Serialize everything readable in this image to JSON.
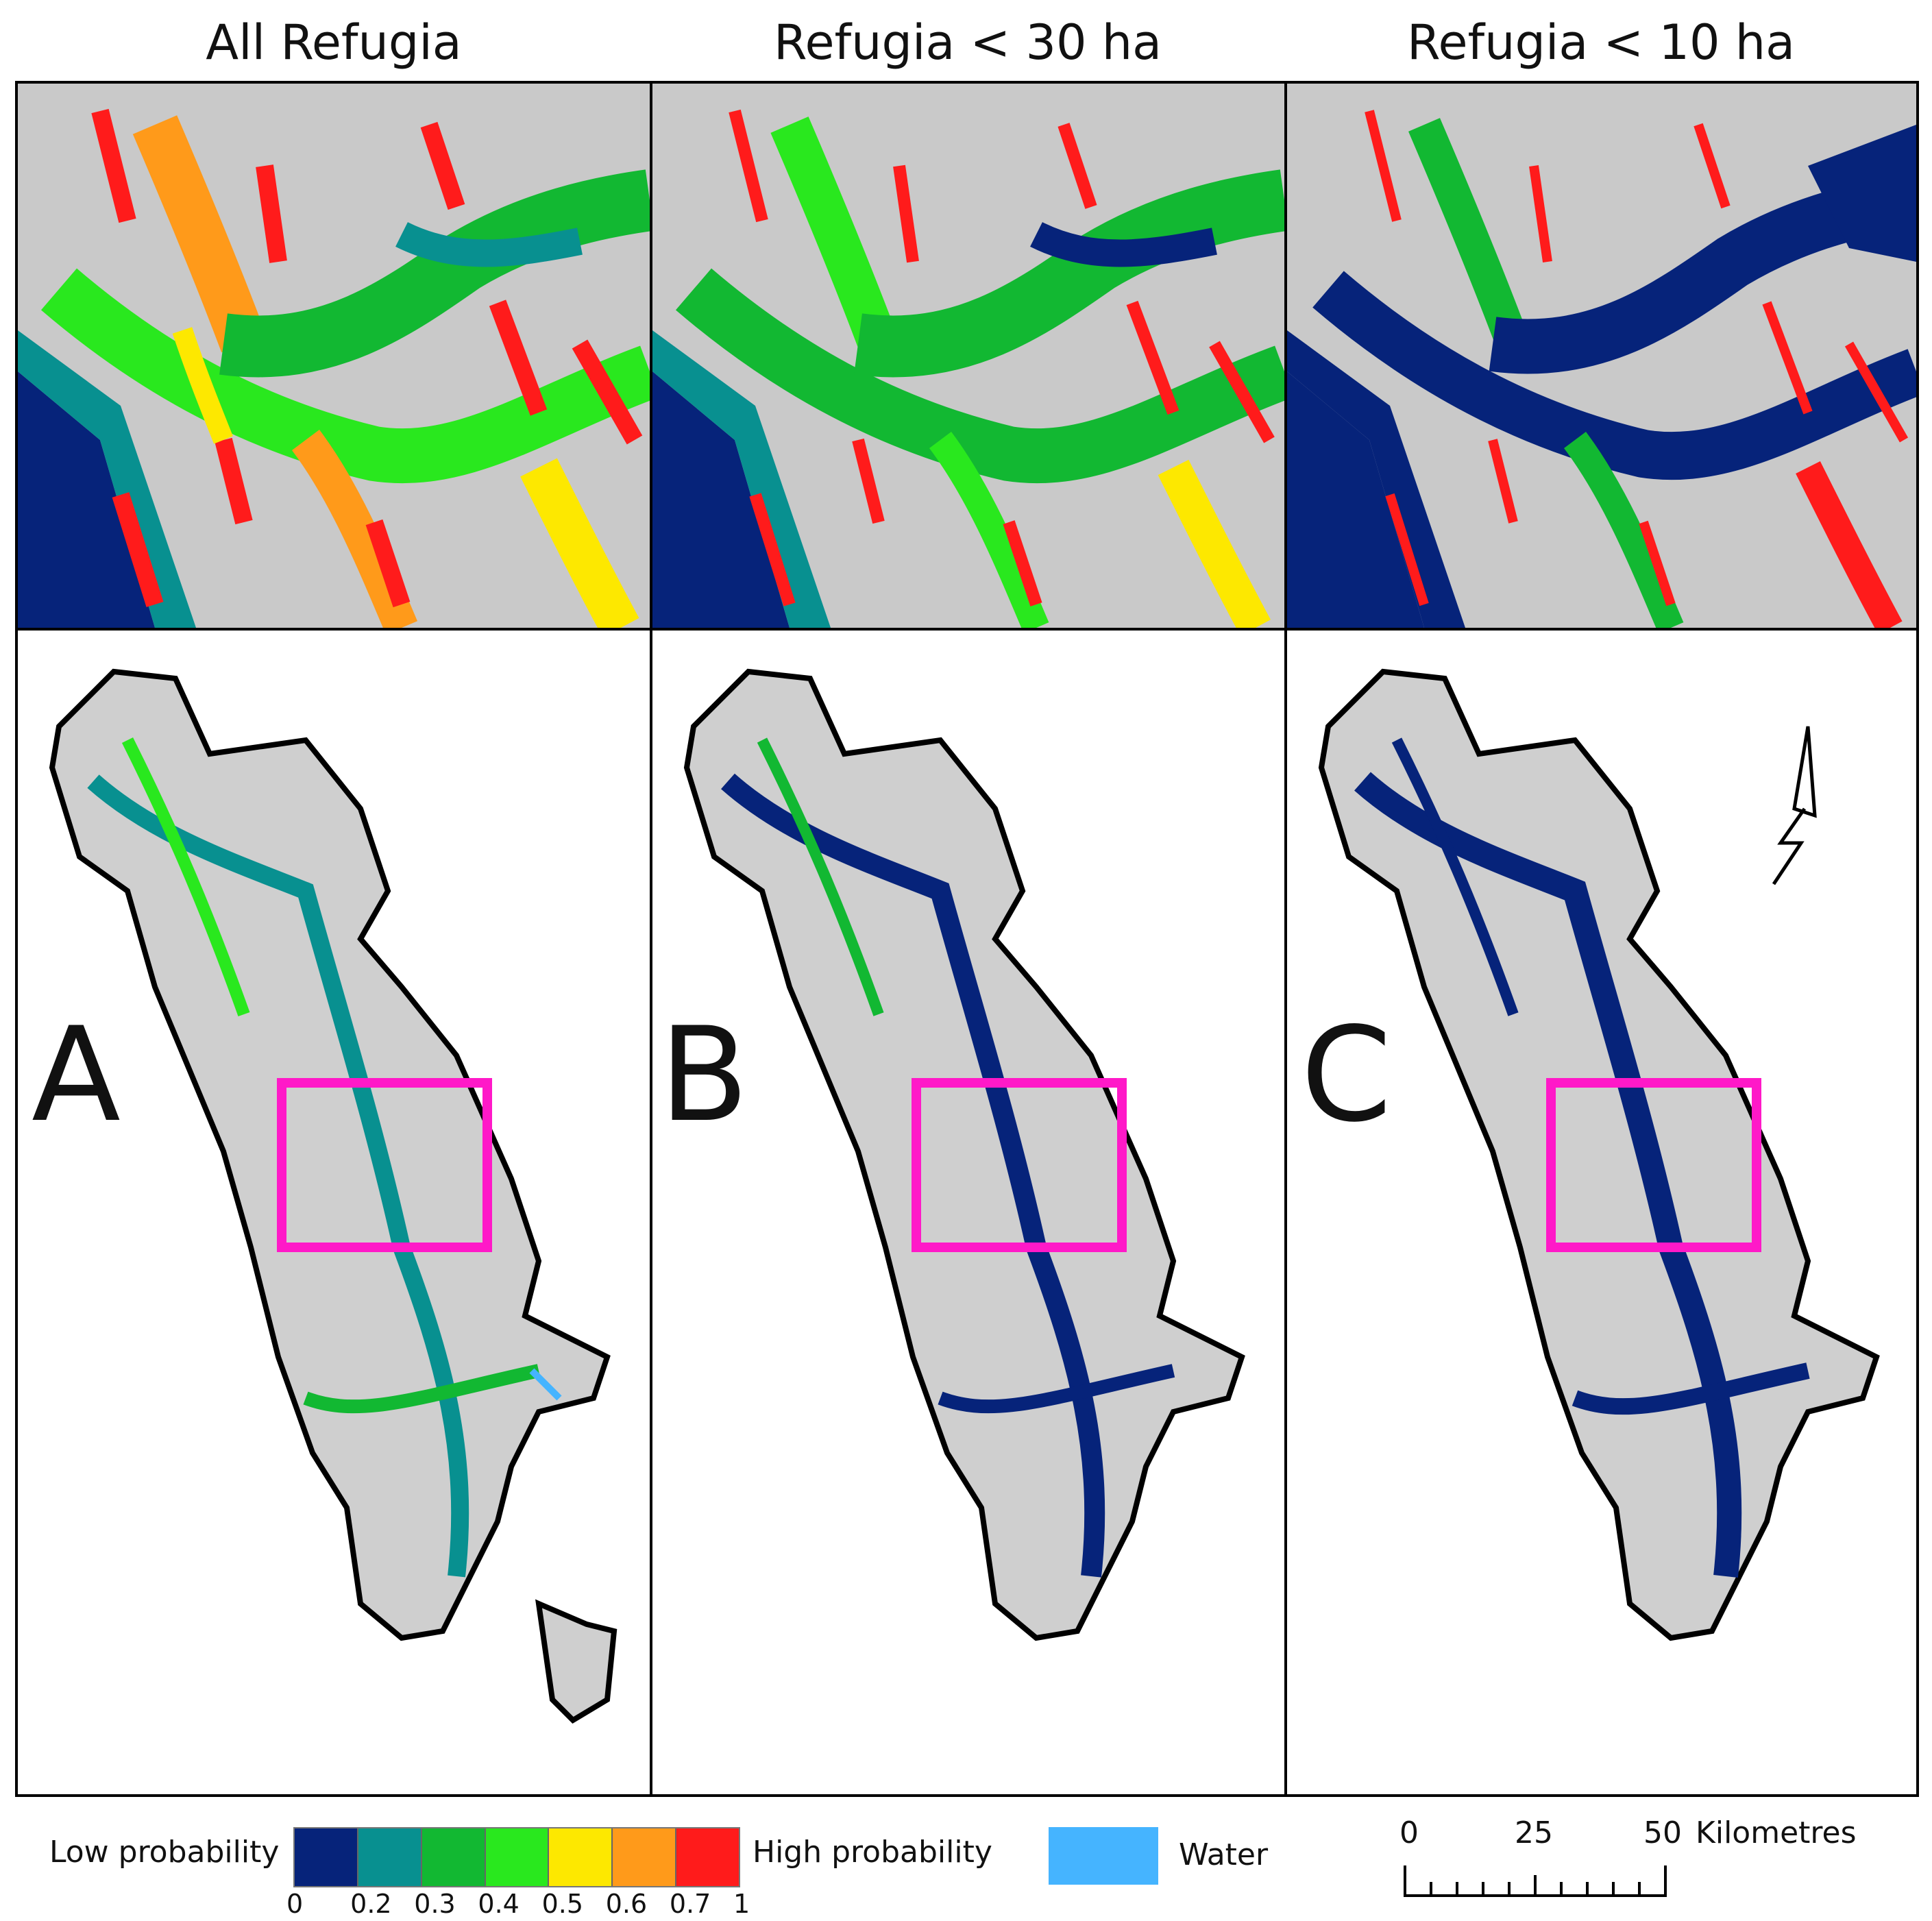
{
  "columns": [
    {
      "title": "All Refugia",
      "letter": "A"
    },
    {
      "title": "Refugia < 30 ha",
      "letter": "B"
    },
    {
      "title": "Refugia < 10 ha",
      "letter": "C"
    }
  ],
  "legend": {
    "low_label": "Low probability",
    "high_label": "High probability",
    "classes": [
      {
        "color": "#06237a"
      },
      {
        "color": "#089090"
      },
      {
        "color": "#12b832"
      },
      {
        "color": "#29e81e"
      },
      {
        "color": "#fde800"
      },
      {
        "color": "#ff9a1a"
      },
      {
        "color": "#ff1b1b"
      }
    ],
    "ticks": [
      "0",
      "0.2",
      "0.3",
      "0.4",
      "0.5",
      "0.6",
      "0.7",
      "1"
    ],
    "water_label": "Water",
    "water_color": "#45b4ff"
  },
  "scale_bar": {
    "ticks": [
      "0",
      "25",
      "50"
    ],
    "unit": "Kilometres"
  },
  "inset_box_color": "#ff19c8",
  "north_arrow": "north-arrow-icon"
}
